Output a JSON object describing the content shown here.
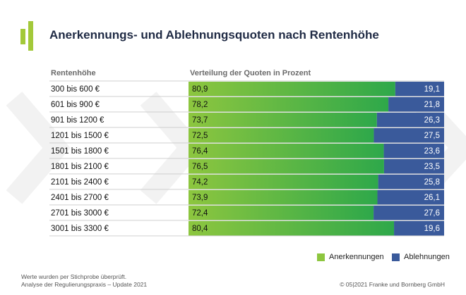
{
  "title": "Anerkennungs- und Ablehnungsquoten nach Rentenhöhe",
  "column_headers": {
    "category": "Rentenhöhe",
    "distribution": "Verteilung der Quoten in Prozent"
  },
  "legend": {
    "anerkennungen": "Anerkennungen",
    "ablehnungen": "Ablehnungen"
  },
  "colors": {
    "title": "#1f2a44",
    "green_start": "#8dc63f",
    "green_end": "#2ea84a",
    "blue": "#3a5a9b",
    "logo_green": "#a3c93a"
  },
  "footer": {
    "note_line1": "Werte wurden per Stichprobe überprüft.",
    "note_line2": "Analyse der Regulierungspraxis – Update 2021",
    "copyright": "© 05|2021 Franke und Bornberg GmbH"
  },
  "chart_data": {
    "type": "bar",
    "stacked": true,
    "orientation": "horizontal",
    "categories": [
      "300 bis 600 €",
      "601 bis 900 €",
      "901 bis 1200 €",
      "1201 bis 1500 €",
      "1501 bis 1800 €",
      "1801 bis 2100 €",
      "2101 bis 2400 €",
      "2401 bis 2700 €",
      "2701 bis 3000 €",
      "3001 bis 3300 €"
    ],
    "series": [
      {
        "name": "Anerkennungen",
        "values": [
          80.9,
          78.2,
          73.7,
          72.5,
          76.4,
          76.5,
          74.2,
          73.9,
          72.4,
          80.4
        ],
        "labels": [
          "80,9",
          "78,2",
          "73,7",
          "72,5",
          "76,4",
          "76,5",
          "74,2",
          "73,9",
          "72,4",
          "80,4"
        ]
      },
      {
        "name": "Ablehnungen",
        "values": [
          19.1,
          21.8,
          26.3,
          27.5,
          23.6,
          23.5,
          25.8,
          26.1,
          27.6,
          19.6
        ],
        "labels": [
          "19,1",
          "21,8",
          "26,3",
          "27,5",
          "23,6",
          "23,5",
          "25,8",
          "26,1",
          "27,6",
          "19,6"
        ]
      }
    ],
    "xlim": [
      0,
      100
    ],
    "legend_position": "bottom-right"
  }
}
